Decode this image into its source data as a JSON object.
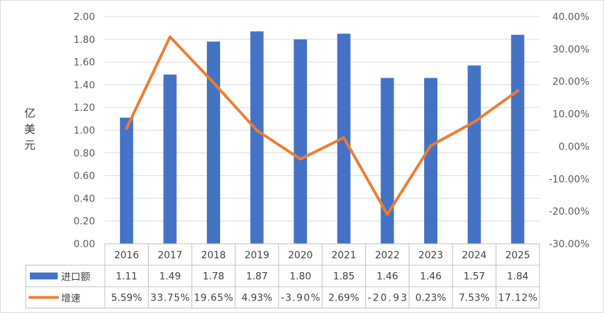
{
  "chart_data": {
    "type": "bar+line",
    "title": "",
    "ylabel": "亿美元",
    "categories": [
      "2016",
      "2017",
      "2018",
      "2019",
      "2020",
      "2021",
      "2022",
      "2023",
      "2024",
      "2025"
    ],
    "y_left": {
      "min": 0,
      "max": 2.0,
      "step": 0.2,
      "ticks": [
        "0.00",
        "0.20",
        "0.40",
        "0.60",
        "0.80",
        "1.00",
        "1.20",
        "1.40",
        "1.60",
        "1.80",
        "2.00"
      ]
    },
    "y_right": {
      "min": -30,
      "max": 40,
      "step": 10,
      "ticks": [
        "-30.00%",
        "-20.00%",
        "-10.00%",
        "0.00%",
        "10.00%",
        "20.00%",
        "30.00%",
        "40.00%"
      ]
    },
    "series": [
      {
        "name": "进口额",
        "kind": "bar",
        "color": "#4472C4",
        "values": [
          1.11,
          1.49,
          1.78,
          1.87,
          1.8,
          1.85,
          1.46,
          1.46,
          1.57,
          1.84
        ],
        "labels": [
          "1.11",
          "1.49",
          "1.78",
          "1.87",
          "1.80",
          "1.85",
          "1.46",
          "1.46",
          "1.57",
          "1.84"
        ]
      },
      {
        "name": "增速",
        "kind": "line",
        "axis": "right",
        "color": "#ED7D31",
        "values": [
          5.59,
          33.75,
          19.65,
          4.93,
          -3.9,
          2.69,
          -20.93,
          0.23,
          7.53,
          17.12
        ],
        "labels": [
          "5.59%",
          "33.75%",
          "19.65%",
          "4.93%",
          "-3.90%",
          "2.69%",
          "-20.93",
          "0.23%",
          "7.53%",
          "17.12%"
        ]
      }
    ],
    "grid": true,
    "legend": "data-table"
  }
}
